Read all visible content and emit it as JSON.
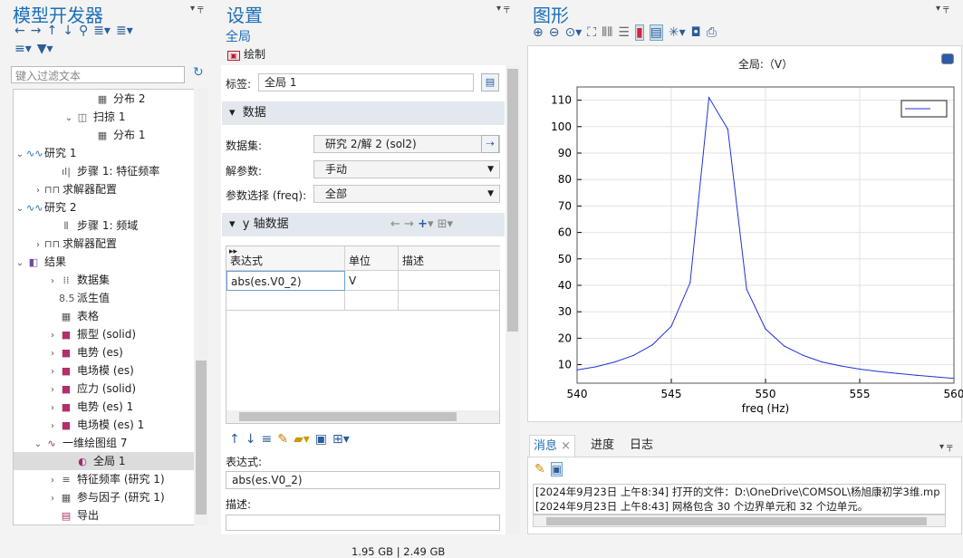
{
  "model_builder": {
    "title": "模型开发器",
    "filter_placeholder": "键入过滤文本",
    "tree": [
      {
        "label": "分布 2",
        "icon": "grid-icon"
      },
      {
        "label": "扫掠 1",
        "icon": "sweep-icon"
      },
      {
        "label": "分布 1",
        "icon": "grid-icon"
      },
      {
        "label": "研究 1",
        "icon": "study-icon"
      },
      {
        "label": "步骤 1: 特征频率",
        "icon": "eigenfrequency-icon"
      },
      {
        "label": "求解器配置",
        "icon": "solver-icon"
      },
      {
        "label": "研究 2",
        "icon": "study-icon"
      },
      {
        "label": "步骤 1: 频域",
        "icon": "frequency-domain-icon"
      },
      {
        "label": "求解器配置",
        "icon": "solver-icon"
      },
      {
        "label": "结果",
        "icon": "results-icon"
      },
      {
        "label": "数据集",
        "icon": "dataset-icon"
      },
      {
        "label": "派生值",
        "icon": "derived-values-icon"
      },
      {
        "label": "表格",
        "icon": "table-icon"
      },
      {
        "label": "振型 (solid)",
        "icon": "plot-group-3d-icon"
      },
      {
        "label": "电势 (es)",
        "icon": "plot-group-3d-icon"
      },
      {
        "label": "电场模 (es)",
        "icon": "plot-group-3d-icon"
      },
      {
        "label": "应力 (solid)",
        "icon": "plot-group-3d-icon"
      },
      {
        "label": "电势 (es) 1",
        "icon": "plot-group-3d-icon"
      },
      {
        "label": "电场模 (es) 1",
        "icon": "plot-group-3d-icon"
      },
      {
        "label": "一维绘图组 7",
        "icon": "plot-group-1d-icon"
      },
      {
        "label": "全局 1",
        "icon": "global-plot-icon"
      },
      {
        "label": "特征频率 (研究 1)",
        "icon": "eigenfrequency-table-icon"
      },
      {
        "label": "参与因子 (研究 1)",
        "icon": "participation-icon"
      },
      {
        "label": "导出",
        "icon": "export-icon"
      }
    ]
  },
  "settings": {
    "title": "设置",
    "subtitle": "全局",
    "plot_label": "绘制",
    "tag_label": "标签:",
    "tag_value": "全局 1",
    "section_data": "数据",
    "dataset_label": "数据集:",
    "dataset_value": "研究 2/解 2 (sol2)",
    "param_label": "解参数:",
    "param_value": "手动",
    "param_sel_label": "参数选择 (freq):",
    "param_sel_value": "全部",
    "section_y": "y 轴数据",
    "col_expr": "表达式",
    "col_unit": "单位",
    "col_desc": "描述",
    "row_expr": "abs(es.V0_2)",
    "row_unit": "V",
    "expr_label": "表达式:",
    "expr_value": "abs(es.V0_2)",
    "desc_label": "描述:"
  },
  "graphics": {
    "title": "图形"
  },
  "messages": {
    "tab_messages": "消息",
    "tab_progress": "进度",
    "tab_log": "日志",
    "line1": "[2024年9月23日 上午8:34] 打开的文件：D:\\OneDrive\\COMSOL\\杨旭康初学3维.mp",
    "line2": "[2024年9月23日 上午8:43] 网格包含 30 个边界单元和 32 个边单元。"
  },
  "status": {
    "memory": "1.95 GB | 2.49 GB"
  },
  "chart_data": {
    "type": "line",
    "title": "全局:（V）",
    "xlabel": "freq (Hz)",
    "ylabel": "",
    "xlim": [
      540,
      560
    ],
    "ylim": [
      3,
      115
    ],
    "xticks": [
      540,
      545,
      550,
      555,
      560
    ],
    "yticks": [
      10,
      20,
      30,
      40,
      50,
      60,
      70,
      80,
      90,
      100,
      110
    ],
    "x": [
      540,
      541,
      542,
      543,
      544,
      545,
      546,
      547,
      548,
      549,
      550,
      551,
      552,
      553,
      554,
      555,
      556,
      557,
      558,
      559,
      560
    ],
    "y": [
      8,
      9.2,
      11,
      13.5,
      17.5,
      24.5,
      41,
      111,
      99,
      38.5,
      23.5,
      17,
      13.5,
      11,
      9.5,
      8.3,
      7.4,
      6.7,
      6,
      5.4,
      4.8
    ],
    "grid": true,
    "legend": "top-right",
    "line_color": "#2033d6"
  }
}
